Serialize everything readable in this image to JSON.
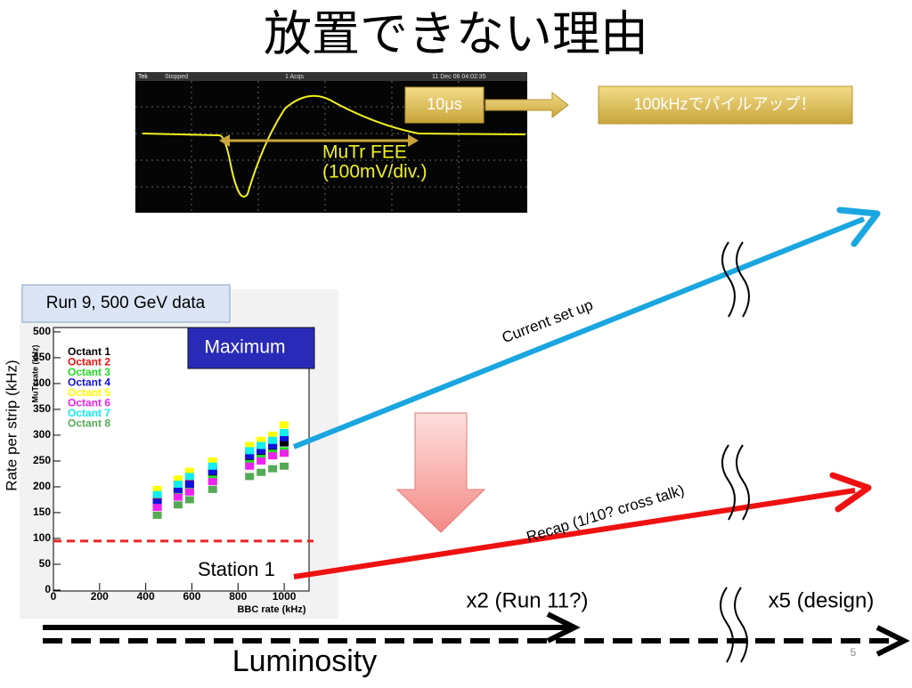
{
  "title": "放置できない理由",
  "scope": {
    "header": [
      "Tek",
      "Stopped",
      "1 Acqs",
      "11 Dec 06 04:02:35"
    ],
    "label": "MuTr FEE",
    "scale": "(100mV/div.)"
  },
  "callouts": {
    "period": "10μs",
    "pileup": "100kHzでパイルアップ！"
  },
  "plot_caption": "Run 9, 500 GeV data",
  "y_axis_label": "Rate per strip (kHz)",
  "chart_data": {
    "type": "scatter",
    "x_label": "BBC rate (kHz)",
    "y_label": "MuTr rate (kHz)",
    "x": [
      450,
      540,
      590,
      690,
      850,
      900,
      950,
      1000
    ],
    "series": [
      {
        "name": "Octant 1",
        "color": "#000000",
        "values": [
          175,
          190,
          200,
          225,
          255,
          265,
          275,
          285
        ]
      },
      {
        "name": "Octant 2",
        "color": "#ee1111",
        "values": [
          180,
          200,
          210,
          235,
          265,
          275,
          285,
          300
        ]
      },
      {
        "name": "Octant 3",
        "color": "#22dd22",
        "values": [
          165,
          185,
          195,
          215,
          245,
          255,
          265,
          270
        ]
      },
      {
        "name": "Octant 4",
        "color": "#1111dd",
        "values": [
          170,
          195,
          205,
          230,
          260,
          270,
          280,
          295
        ]
      },
      {
        "name": "Octant 5",
        "color": "#ffff00",
        "values": [
          195,
          215,
          230,
          250,
          280,
          290,
          300,
          320
        ]
      },
      {
        "name": "Octant 6",
        "color": "#ee22ee",
        "values": [
          160,
          180,
          190,
          210,
          240,
          250,
          260,
          265
        ]
      },
      {
        "name": "Octant 7",
        "color": "#11eeee",
        "values": [
          185,
          205,
          220,
          240,
          270,
          280,
          290,
          305
        ]
      },
      {
        "name": "Octant 8",
        "color": "#55aa55",
        "values": [
          145,
          165,
          175,
          195,
          220,
          228,
          235,
          240
        ]
      }
    ],
    "xlim": [
      0,
      1100
    ],
    "ylim": [
      0,
      505
    ],
    "xticks": [
      0,
      200,
      400,
      600,
      800,
      1000
    ],
    "yticks": [
      0,
      50,
      100,
      150,
      200,
      250,
      300,
      350,
      400,
      450,
      500
    ],
    "reference_line": {
      "value": 95,
      "color": "#ee2222"
    },
    "annotations": [
      "Maximum",
      "Station 1"
    ]
  },
  "lines": {
    "current": "Current set up",
    "recap": "Recap (1/10? cross talk)"
  },
  "luminosity": {
    "x2": "x2 (Run 11?)",
    "x5": "x5 (design)",
    "label": "Luminosity"
  },
  "page_number": "5"
}
